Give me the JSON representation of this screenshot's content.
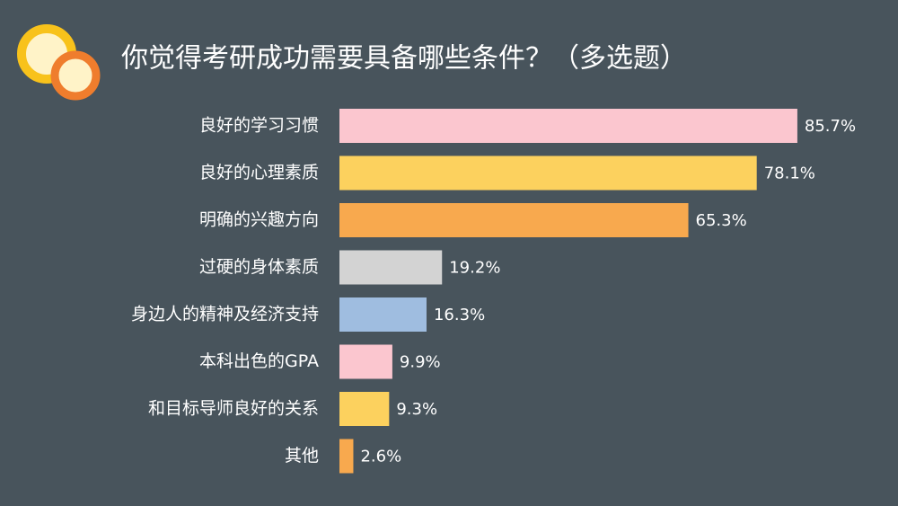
{
  "chart_data": {
    "type": "bar",
    "orientation": "horizontal",
    "title": "你觉得考研成功需要具备哪些条件？（多选题）",
    "categories": [
      "良好的学习习惯",
      "良好的心理素质",
      "明确的兴趣方向",
      "过硬的身体素质",
      "身边人的精神及经济支持",
      "本科出色的GPA",
      "和目标导师良好的关系",
      "其他"
    ],
    "values": [
      85.7,
      78.1,
      65.3,
      19.2,
      16.3,
      9.9,
      9.3,
      2.6
    ],
    "value_labels": [
      "85.7%",
      "78.1%",
      "65.3%",
      "19.2%",
      "16.3%",
      "9.9%",
      "9.3%",
      "2.6%"
    ],
    "colors": [
      "#fbc6cf",
      "#fcd15e",
      "#f8a94e",
      "#d3d3d3",
      "#9fbde0",
      "#fbc6cf",
      "#fcd15e",
      "#f8a94e"
    ]
  }
}
